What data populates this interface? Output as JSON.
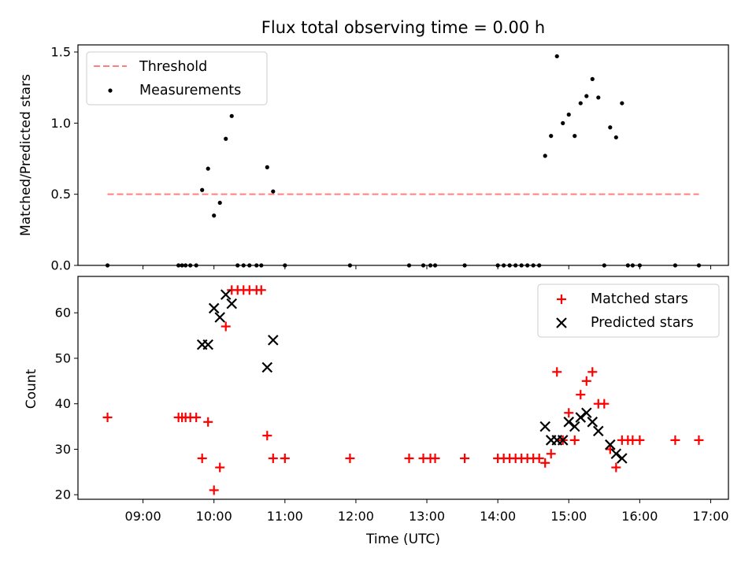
{
  "chart_data": [
    {
      "type": "scatter",
      "title": "Flux total observing time = 0.00 h",
      "ylabel": "Matched/Predicted stars",
      "xlim": [
        "08:05",
        "17:15"
      ],
      "ylim": [
        0,
        1.55
      ],
      "yticks": [
        "0.0",
        "0.5",
        "1.0",
        "1.5"
      ],
      "legend": {
        "placement": "top-left",
        "entries": [
          "Threshold",
          "Measurements"
        ]
      },
      "threshold": {
        "name": "Threshold",
        "y": 0.5,
        "x_range": [
          "08:30",
          "16:50"
        ],
        "color": "#ff7f7f",
        "style": "dashed"
      },
      "series": [
        {
          "name": "Measurements",
          "marker": "dot",
          "color": "#000000",
          "points": [
            [
              "08:30",
              0.0
            ],
            [
              "09:30",
              0.0
            ],
            [
              "09:33",
              0.0
            ],
            [
              "09:36",
              0.0
            ],
            [
              "09:40",
              0.0
            ],
            [
              "09:45",
              0.0
            ],
            [
              "09:50",
              0.53
            ],
            [
              "09:55",
              0.68
            ],
            [
              "10:00",
              0.35
            ],
            [
              "10:05",
              0.44
            ],
            [
              "10:10",
              0.89
            ],
            [
              "10:15",
              1.05
            ],
            [
              "10:20",
              0.0
            ],
            [
              "10:25",
              0.0
            ],
            [
              "10:30",
              0.0
            ],
            [
              "10:36",
              0.0
            ],
            [
              "10:40",
              0.0
            ],
            [
              "10:45",
              0.69
            ],
            [
              "10:50",
              0.52
            ],
            [
              "11:00",
              0.0
            ],
            [
              "11:55",
              0.0
            ],
            [
              "12:45",
              0.0
            ],
            [
              "12:57",
              0.0
            ],
            [
              "13:03",
              0.0
            ],
            [
              "13:07",
              0.0
            ],
            [
              "13:32",
              0.0
            ],
            [
              "14:00",
              0.0
            ],
            [
              "14:05",
              0.0
            ],
            [
              "14:10",
              0.0
            ],
            [
              "14:15",
              0.0
            ],
            [
              "14:20",
              0.0
            ],
            [
              "14:25",
              0.0
            ],
            [
              "14:30",
              0.0
            ],
            [
              "14:35",
              0.0
            ],
            [
              "14:40",
              0.77
            ],
            [
              "14:45",
              0.91
            ],
            [
              "14:50",
              1.47
            ],
            [
              "14:55",
              1.0
            ],
            [
              "15:00",
              1.06
            ],
            [
              "15:05",
              0.91
            ],
            [
              "15:10",
              1.14
            ],
            [
              "15:15",
              1.19
            ],
            [
              "15:20",
              1.31
            ],
            [
              "15:25",
              1.18
            ],
            [
              "15:30",
              0.0
            ],
            [
              "15:35",
              0.97
            ],
            [
              "15:40",
              0.9
            ],
            [
              "15:45",
              1.14
            ],
            [
              "15:50",
              0.0
            ],
            [
              "15:54",
              0.0
            ],
            [
              "16:00",
              0.0
            ],
            [
              "16:30",
              0.0
            ],
            [
              "16:50",
              0.0
            ]
          ]
        }
      ]
    },
    {
      "type": "scatter",
      "xlabel": "Time (UTC)",
      "ylabel": "Count",
      "xlim": [
        "08:05",
        "17:15"
      ],
      "ylim": [
        19,
        68
      ],
      "xticks": [
        "09:00",
        "10:00",
        "11:00",
        "12:00",
        "13:00",
        "14:00",
        "15:00",
        "16:00",
        "17:00"
      ],
      "yticks": [
        "20",
        "30",
        "40",
        "50",
        "60"
      ],
      "legend": {
        "placement": "top-right",
        "entries": [
          "Matched stars",
          "Predicted stars"
        ]
      },
      "series": [
        {
          "name": "Matched stars",
          "marker": "plus",
          "color": "#ff0000",
          "points": [
            [
              "08:30",
              37
            ],
            [
              "09:30",
              37
            ],
            [
              "09:33",
              37
            ],
            [
              "09:36",
              37
            ],
            [
              "09:40",
              37
            ],
            [
              "09:45",
              37
            ],
            [
              "09:50",
              28
            ],
            [
              "09:55",
              36
            ],
            [
              "10:00",
              21
            ],
            [
              "10:05",
              26
            ],
            [
              "10:10",
              57
            ],
            [
              "10:15",
              65
            ],
            [
              "10:20",
              65
            ],
            [
              "10:25",
              65
            ],
            [
              "10:30",
              65
            ],
            [
              "10:36",
              65
            ],
            [
              "10:40",
              65
            ],
            [
              "10:45",
              33
            ],
            [
              "10:50",
              28
            ],
            [
              "11:00",
              28
            ],
            [
              "11:55",
              28
            ],
            [
              "12:45",
              28
            ],
            [
              "12:57",
              28
            ],
            [
              "13:03",
              28
            ],
            [
              "13:07",
              28
            ],
            [
              "13:32",
              28
            ],
            [
              "14:00",
              28
            ],
            [
              "14:05",
              28
            ],
            [
              "14:10",
              28
            ],
            [
              "14:15",
              28
            ],
            [
              "14:20",
              28
            ],
            [
              "14:25",
              28
            ],
            [
              "14:30",
              28
            ],
            [
              "14:35",
              28
            ],
            [
              "14:40",
              27
            ],
            [
              "14:45",
              29
            ],
            [
              "14:50",
              47
            ],
            [
              "14:55",
              32
            ],
            [
              "15:00",
              38
            ],
            [
              "15:05",
              32
            ],
            [
              "15:10",
              42
            ],
            [
              "15:15",
              45
            ],
            [
              "15:20",
              47
            ],
            [
              "15:25",
              40
            ],
            [
              "15:30",
              40
            ],
            [
              "15:35",
              30
            ],
            [
              "15:40",
              26
            ],
            [
              "15:45",
              32
            ],
            [
              "15:50",
              32
            ],
            [
              "15:54",
              32
            ],
            [
              "16:00",
              32
            ],
            [
              "16:30",
              32
            ],
            [
              "16:50",
              32
            ]
          ]
        },
        {
          "name": "Predicted stars",
          "marker": "x",
          "color": "#000000",
          "points": [
            [
              "09:50",
              53
            ],
            [
              "09:55",
              53
            ],
            [
              "10:00",
              61
            ],
            [
              "10:05",
              59
            ],
            [
              "10:10",
              64
            ],
            [
              "10:15",
              62
            ],
            [
              "10:45",
              48
            ],
            [
              "10:50",
              54
            ],
            [
              "14:40",
              35
            ],
            [
              "14:45",
              32
            ],
            [
              "14:50",
              32
            ],
            [
              "14:55",
              32
            ],
            [
              "15:00",
              36
            ],
            [
              "15:05",
              35
            ],
            [
              "15:10",
              37
            ],
            [
              "15:15",
              38
            ],
            [
              "15:20",
              36
            ],
            [
              "15:25",
              34
            ],
            [
              "15:35",
              31
            ],
            [
              "15:40",
              29
            ],
            [
              "15:45",
              28
            ]
          ]
        }
      ]
    }
  ]
}
